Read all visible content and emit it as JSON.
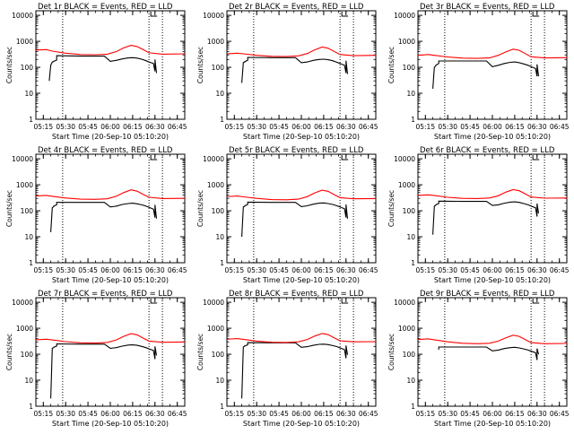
{
  "figure": {
    "xlabel": "Start Time (20-Sep-10 05:10:20)",
    "ylabel": "Counts/sec",
    "x_tick_labels": [
      "05:15",
      "05:30",
      "05:45",
      "06:00",
      "06:15",
      "06:30",
      "06:45"
    ],
    "y_tick_labels": [
      "1",
      "10",
      "100",
      "1000",
      "10000"
    ],
    "colors": {
      "events": "#000000",
      "lld": "#ff0000",
      "axes": "#000000"
    }
  },
  "chart_data": [
    {
      "type": "line",
      "title": "Det 1r BLACK = Events, RED = LLD",
      "xlabel": "Start Time (20-Sep-10 05:10:20)",
      "ylabel": "Counts/sec",
      "xlim": [
        "05:10",
        "06:50"
      ],
      "ylim": [
        1,
        15000
      ],
      "yscale": "log",
      "grid": false,
      "vlines": [
        "05:28",
        "06:26",
        "06:35"
      ],
      "series": [
        {
          "name": "Events",
          "x": [
            "05:19",
            "05:20",
            "05:21",
            "05:22",
            "05:22",
            "05:24",
            "05:24",
            "05:40",
            "05:56",
            "06:00",
            "06:04",
            "06:08",
            "06:12",
            "06:15",
            "06:18",
            "06:21",
            "06:24",
            "06:26",
            "06:29",
            "06:30",
            "06:30",
            "06:31"
          ],
          "values": [
            30,
            120,
            160,
            165,
            170,
            190,
            280,
            270,
            270,
            170,
            185,
            210,
            230,
            235,
            225,
            205,
            180,
            160,
            140,
            70,
            200,
            60
          ]
        },
        {
          "name": "LLD",
          "x": [
            "05:10",
            "05:17",
            "05:21",
            "05:30",
            "05:40",
            "05:50",
            "05:58",
            "06:04",
            "06:09",
            "06:14",
            "06:18",
            "06:22",
            "06:26",
            "06:35",
            "06:50"
          ],
          "values": [
            460,
            480,
            420,
            350,
            310,
            305,
            320,
            400,
            560,
            700,
            630,
            480,
            360,
            320,
            330
          ]
        }
      ]
    },
    {
      "type": "line",
      "title": "Det 2r BLACK = Events, RED = LLD",
      "xlabel": "Start Time (20-Sep-10 05:10:20)",
      "ylabel": "Counts/sec",
      "xlim": [
        "05:10",
        "06:50"
      ],
      "ylim": [
        1,
        15000
      ],
      "yscale": "log",
      "grid": false,
      "vlines": [
        "05:28",
        "06:26",
        "06:35"
      ],
      "series": [
        {
          "name": "Events",
          "x": [
            "05:20",
            "05:21",
            "05:22",
            "05:22",
            "05:24",
            "05:24",
            "05:40",
            "05:56",
            "06:00",
            "06:04",
            "06:08",
            "06:12",
            "06:15",
            "06:18",
            "06:21",
            "06:24",
            "06:26",
            "06:29",
            "06:30",
            "06:30",
            "06:31"
          ],
          "values": [
            25,
            150,
            160,
            165,
            185,
            240,
            235,
            235,
            150,
            160,
            185,
            200,
            205,
            195,
            180,
            155,
            140,
            120,
            60,
            180,
            55
          ]
        },
        {
          "name": "LLD",
          "x": [
            "05:10",
            "05:17",
            "05:21",
            "05:30",
            "05:40",
            "05:50",
            "05:58",
            "06:04",
            "06:09",
            "06:14",
            "06:18",
            "06:22",
            "06:26",
            "06:35",
            "06:50"
          ],
          "values": [
            330,
            350,
            330,
            290,
            265,
            260,
            275,
            340,
            470,
            600,
            540,
            410,
            310,
            280,
            290
          ]
        }
      ]
    },
    {
      "type": "line",
      "title": "Det 3r BLACK = Events, RED = LLD",
      "xlabel": "Start Time (20-Sep-10 05:10:20)",
      "ylabel": "Counts/sec",
      "xlim": [
        "05:10",
        "06:50"
      ],
      "ylim": [
        1,
        15000
      ],
      "yscale": "log",
      "grid": false,
      "vlines": [
        "05:28",
        "06:26",
        "06:35"
      ],
      "series": [
        {
          "name": "Events",
          "x": [
            "05:20",
            "05:21",
            "05:22",
            "05:22",
            "05:24",
            "05:24",
            "05:40",
            "05:56",
            "06:00",
            "06:04",
            "06:08",
            "06:12",
            "06:15",
            "06:18",
            "06:21",
            "06:24",
            "06:26",
            "06:29",
            "06:30",
            "06:30",
            "06:31"
          ],
          "values": [
            15,
            100,
            115,
            120,
            140,
            175,
            175,
            175,
            105,
            120,
            140,
            155,
            160,
            150,
            135,
            120,
            105,
            90,
            45,
            130,
            45
          ]
        },
        {
          "name": "LLD",
          "x": [
            "05:10",
            "05:17",
            "05:21",
            "05:30",
            "05:40",
            "05:50",
            "05:58",
            "06:04",
            "06:09",
            "06:14",
            "06:18",
            "06:22",
            "06:26",
            "06:35",
            "06:50"
          ],
          "values": [
            290,
            310,
            290,
            250,
            225,
            220,
            230,
            290,
            390,
            500,
            450,
            340,
            255,
            230,
            235
          ]
        }
      ]
    },
    {
      "type": "line",
      "title": "Det 4r BLACK = Events, RED = LLD",
      "xlabel": "Start Time (20-Sep-10 05:10:20)",
      "ylabel": "Counts/sec",
      "xlim": [
        "05:10",
        "06:50"
      ],
      "ylim": [
        1,
        15000
      ],
      "yscale": "log",
      "grid": false,
      "vlines": [
        "05:28",
        "06:26",
        "06:35"
      ],
      "series": [
        {
          "name": "Events",
          "x": [
            "05:20",
            "05:21",
            "05:22",
            "05:22",
            "05:24",
            "05:24",
            "05:40",
            "05:56",
            "06:00",
            "06:04",
            "06:08",
            "06:12",
            "06:15",
            "06:18",
            "06:21",
            "06:24",
            "06:26",
            "06:29",
            "06:30",
            "06:30",
            "06:31"
          ],
          "values": [
            15,
            130,
            145,
            150,
            170,
            210,
            210,
            210,
            140,
            150,
            175,
            190,
            195,
            185,
            170,
            150,
            135,
            115,
            55,
            170,
            50
          ]
        },
        {
          "name": "LLD",
          "x": [
            "05:10",
            "05:17",
            "05:21",
            "05:30",
            "05:40",
            "05:50",
            "05:58",
            "06:04",
            "06:09",
            "06:14",
            "06:18",
            "06:22",
            "06:26",
            "06:35",
            "06:50"
          ],
          "values": [
            370,
            390,
            360,
            310,
            280,
            275,
            290,
            360,
            500,
            640,
            570,
            430,
            330,
            295,
            300
          ]
        }
      ]
    },
    {
      "type": "line",
      "title": "Det 5r BLACK = Events, RED = LLD",
      "xlabel": "Start Time (20-Sep-10 05:10:20)",
      "ylabel": "Counts/sec",
      "xlim": [
        "05:10",
        "06:50"
      ],
      "ylim": [
        1,
        15000
      ],
      "yscale": "log",
      "grid": false,
      "vlines": [
        "05:28",
        "06:26",
        "06:35"
      ],
      "series": [
        {
          "name": "Events",
          "x": [
            "05:20",
            "05:21",
            "05:22",
            "05:22",
            "05:24",
            "05:24",
            "05:40",
            "05:56",
            "06:00",
            "06:04",
            "06:08",
            "06:12",
            "06:15",
            "06:18",
            "06:21",
            "06:24",
            "06:26",
            "06:29",
            "06:30",
            "06:30",
            "06:31"
          ],
          "values": [
            10,
            140,
            150,
            155,
            175,
            215,
            210,
            210,
            145,
            155,
            180,
            195,
            200,
            190,
            175,
            155,
            140,
            120,
            55,
            175,
            50
          ]
        },
        {
          "name": "LLD",
          "x": [
            "05:10",
            "05:17",
            "05:21",
            "05:30",
            "05:40",
            "05:50",
            "05:58",
            "06:04",
            "06:09",
            "06:14",
            "06:18",
            "06:22",
            "06:26",
            "06:35",
            "06:50"
          ],
          "values": [
            350,
            370,
            345,
            300,
            270,
            265,
            280,
            350,
            490,
            620,
            560,
            420,
            320,
            290,
            295
          ]
        }
      ]
    },
    {
      "type": "line",
      "title": "Det 6r BLACK = Events, RED = LLD",
      "xlabel": "Start Time (20-Sep-10 05:10:20)",
      "ylabel": "Counts/sec",
      "xlim": [
        "05:10",
        "06:50"
      ],
      "ylim": [
        1,
        15000
      ],
      "yscale": "log",
      "grid": false,
      "vlines": [
        "05:28",
        "06:26",
        "06:35"
      ],
      "series": [
        {
          "name": "Events",
          "x": [
            "05:20",
            "05:21",
            "05:22",
            "05:22",
            "05:24",
            "05:24",
            "05:40",
            "05:56",
            "06:00",
            "06:04",
            "06:08",
            "06:12",
            "06:15",
            "06:18",
            "06:21",
            "06:24",
            "06:26",
            "06:29",
            "06:30",
            "06:30",
            "06:31"
          ],
          "values": [
            12,
            150,
            165,
            170,
            190,
            235,
            230,
            230,
            160,
            170,
            195,
            215,
            220,
            210,
            190,
            170,
            150,
            130,
            60,
            190,
            80
          ]
        },
        {
          "name": "LLD",
          "x": [
            "05:10",
            "05:17",
            "05:21",
            "05:30",
            "05:40",
            "05:50",
            "05:58",
            "06:04",
            "06:09",
            "06:14",
            "06:18",
            "06:22",
            "06:26",
            "06:35",
            "06:50"
          ],
          "values": [
            390,
            410,
            385,
            330,
            300,
            295,
            310,
            380,
            520,
            650,
            590,
            450,
            340,
            305,
            310
          ]
        }
      ]
    },
    {
      "type": "line",
      "title": "Det 7r BLACK = Events, RED = LLD",
      "xlabel": "Start Time (20-Sep-10 05:10:20)",
      "ylabel": "Counts/sec",
      "xlim": [
        "05:10",
        "06:50"
      ],
      "ylim": [
        1,
        15000
      ],
      "yscale": "log",
      "grid": false,
      "vlines": [
        "05:28",
        "06:26",
        "06:35"
      ],
      "series": [
        {
          "name": "Events",
          "x": [
            "05:20",
            "05:21",
            "05:22",
            "05:22",
            "05:24",
            "05:24",
            "05:40",
            "05:56",
            "06:00",
            "06:04",
            "06:08",
            "06:12",
            "06:15",
            "06:18",
            "06:21",
            "06:24",
            "06:26",
            "06:29",
            "06:30",
            "06:30",
            "06:31"
          ],
          "values": [
            2,
            170,
            180,
            185,
            205,
            250,
            245,
            245,
            170,
            180,
            205,
            225,
            230,
            220,
            200,
            180,
            160,
            140,
            65,
            200,
            90
          ]
        },
        {
          "name": "LLD",
          "x": [
            "05:10",
            "05:17",
            "05:21",
            "05:30",
            "05:40",
            "05:50",
            "05:58",
            "06:04",
            "06:09",
            "06:14",
            "06:18",
            "06:22",
            "06:26",
            "06:35",
            "06:50"
          ],
          "values": [
            360,
            380,
            355,
            305,
            275,
            270,
            285,
            355,
            490,
            620,
            560,
            420,
            320,
            290,
            295
          ]
        }
      ]
    },
    {
      "type": "line",
      "title": "Det 8r BLACK = Events, RED = LLD",
      "xlabel": "Start Time (20-Sep-10 05:10:20)",
      "ylabel": "Counts/sec",
      "xlim": [
        "05:10",
        "06:50"
      ],
      "ylim": [
        1,
        15000
      ],
      "yscale": "log",
      "grid": false,
      "vlines": [
        "05:28",
        "06:26",
        "06:35"
      ],
      "series": [
        {
          "name": "Events",
          "x": [
            "05:20",
            "05:21",
            "05:22",
            "05:22",
            "05:24",
            "05:24",
            "05:40",
            "05:56",
            "06:00",
            "06:04",
            "06:08",
            "06:12",
            "06:15",
            "06:18",
            "06:21",
            "06:24",
            "06:26",
            "06:29",
            "06:30",
            "06:30",
            "06:31"
          ],
          "values": [
            2,
            190,
            205,
            210,
            230,
            280,
            275,
            275,
            185,
            195,
            220,
            240,
            245,
            235,
            215,
            195,
            175,
            150,
            70,
            215,
            95
          ]
        },
        {
          "name": "LLD",
          "x": [
            "05:10",
            "05:17",
            "05:21",
            "05:30",
            "05:40",
            "05:50",
            "05:58",
            "06:04",
            "06:09",
            "06:14",
            "06:18",
            "06:22",
            "06:26",
            "06:35",
            "06:50"
          ],
          "values": [
            380,
            400,
            375,
            320,
            290,
            285,
            300,
            370,
            500,
            630,
            570,
            430,
            330,
            300,
            305
          ]
        }
      ]
    },
    {
      "type": "line",
      "title": "Det 9r BLACK = Events, RED = LLD",
      "xlabel": "Start Time (20-Sep-10 05:10:20)",
      "ylabel": "Counts/sec",
      "xlim": [
        "05:10",
        "06:50"
      ],
      "ylim": [
        1,
        15000
      ],
      "yscale": "log",
      "grid": false,
      "vlines": [
        "05:28",
        "06:26",
        "06:35"
      ],
      "series": [
        {
          "name": "Events",
          "x": [
            "05:24",
            "05:24",
            "05:40",
            "05:56",
            "06:00",
            "06:04",
            "06:08",
            "06:12",
            "06:15",
            "06:18",
            "06:21",
            "06:24",
            "06:26",
            "06:29",
            "06:30",
            "06:30",
            "06:31"
          ],
          "values": [
            150,
            190,
            190,
            190,
            135,
            145,
            165,
            180,
            185,
            175,
            160,
            145,
            130,
            115,
            60,
            165,
            100
          ]
        },
        {
          "name": "LLD",
          "x": [
            "05:10",
            "05:17",
            "05:21",
            "05:30",
            "05:40",
            "05:50",
            "05:58",
            "06:04",
            "06:09",
            "06:14",
            "06:18",
            "06:22",
            "06:26",
            "06:35",
            "06:50"
          ],
          "values": [
            370,
            390,
            360,
            300,
            265,
            255,
            265,
            320,
            430,
            540,
            490,
            370,
            280,
            255,
            260
          ]
        }
      ]
    }
  ]
}
